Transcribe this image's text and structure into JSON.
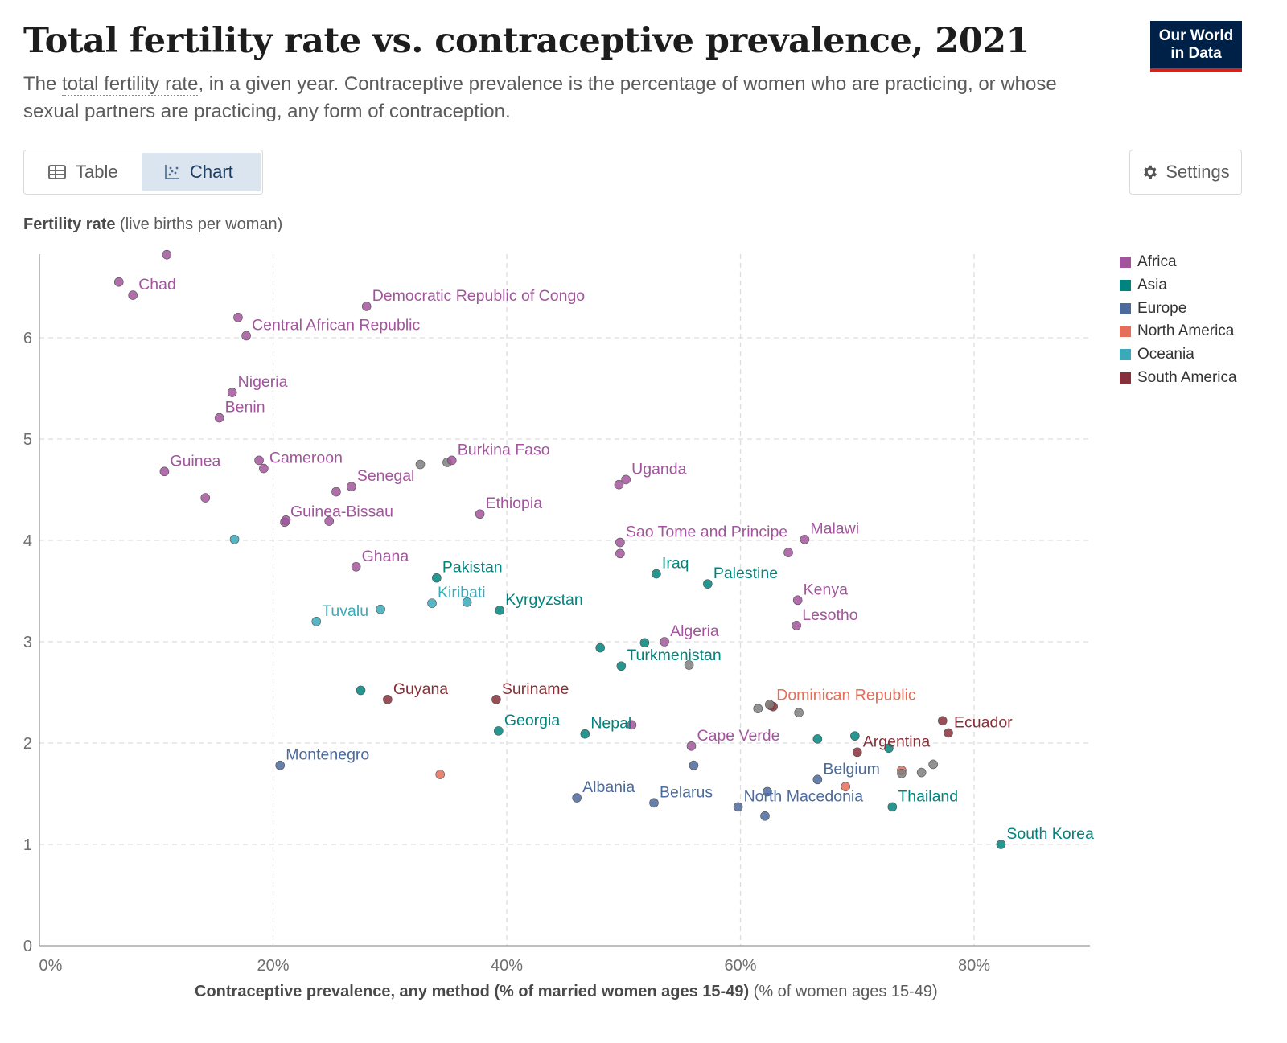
{
  "header": {
    "title": "Total fertility rate vs. contraceptive prevalence, 2021",
    "subtitle_pre": "The ",
    "subtitle_link": "total fertility rate",
    "subtitle_post": ", in a given year. Contraceptive prevalence is the percentage of women who are practicing, or whose sexual partners are practicing, any form of contraception.",
    "logo_line1": "Our World",
    "logo_line2": "in Data"
  },
  "tabs": {
    "table_label": "Table",
    "chart_label": "Chart",
    "active": "Chart",
    "table_icon": "table-icon",
    "chart_icon": "scatter-chart-icon"
  },
  "settings": {
    "label": "Settings",
    "icon": "gear-icon"
  },
  "axes": {
    "y_label_bold": "Fertility rate",
    "y_label_rest": " (live births per woman)",
    "x_label_bold": "Contraceptive prevalence, any method (% of married women ages 15-49)",
    "x_label_rest": " (% of women ages 15-49)"
  },
  "colors": {
    "Africa": "#a2559c",
    "Asia": "#00847e",
    "Europe": "#4c6a9c",
    "North America": "#e56e5a",
    "Oceania": "#38aaba",
    "South America": "#883039",
    "Other": "#7f7f7f"
  },
  "chart_data": {
    "type": "scatter",
    "xlim": [
      0,
      90
    ],
    "ylim": [
      0,
      6.8
    ],
    "x_ticks": [
      0,
      20,
      40,
      60,
      80
    ],
    "x_tick_labels": [
      "0%",
      "20%",
      "40%",
      "60%",
      "80%"
    ],
    "y_ticks": [
      0,
      1,
      2,
      3,
      4,
      5,
      6
    ],
    "y_tick_labels": [
      "0",
      "1",
      "2",
      "3",
      "4",
      "5",
      "6"
    ],
    "grid": true,
    "legend_position": "right",
    "legend": [
      "Africa",
      "Asia",
      "Europe",
      "North America",
      "Oceania",
      "South America"
    ],
    "points": [
      {
        "x": 10.9,
        "y": 6.82,
        "region": "Africa"
      },
      {
        "x": 6.8,
        "y": 6.55,
        "region": "Africa"
      },
      {
        "x": 8.0,
        "y": 6.42,
        "region": "Africa",
        "label": "Chad"
      },
      {
        "x": 28.0,
        "y": 6.31,
        "region": "Africa",
        "label": "Democratic Republic of Congo"
      },
      {
        "x": 17.0,
        "y": 6.2,
        "region": "Africa"
      },
      {
        "x": 17.7,
        "y": 6.02,
        "region": "Africa",
        "label": "Central African Republic"
      },
      {
        "x": 16.5,
        "y": 5.46,
        "region": "Africa",
        "label": "Nigeria"
      },
      {
        "x": 15.4,
        "y": 5.21,
        "region": "Africa",
        "label": "Benin"
      },
      {
        "x": 18.8,
        "y": 4.79,
        "region": "Africa"
      },
      {
        "x": 19.2,
        "y": 4.71,
        "region": "Africa",
        "label": "Cameroon"
      },
      {
        "x": 10.7,
        "y": 4.68,
        "region": "Africa",
        "label": "Guinea"
      },
      {
        "x": 32.6,
        "y": 4.75,
        "region": "Other"
      },
      {
        "x": 34.9,
        "y": 4.77,
        "region": "Other"
      },
      {
        "x": 35.3,
        "y": 4.79,
        "region": "Africa",
        "label": "Burkina Faso"
      },
      {
        "x": 26.7,
        "y": 4.53,
        "region": "Africa",
        "label": "Senegal"
      },
      {
        "x": 25.4,
        "y": 4.48,
        "region": "Africa"
      },
      {
        "x": 14.2,
        "y": 4.42,
        "region": "Africa"
      },
      {
        "x": 49.6,
        "y": 4.55,
        "region": "Africa"
      },
      {
        "x": 50.2,
        "y": 4.6,
        "region": "Africa",
        "label": "Uganda"
      },
      {
        "x": 37.7,
        "y": 4.26,
        "region": "Africa",
        "label": "Ethiopia"
      },
      {
        "x": 21.0,
        "y": 4.18,
        "region": "Africa",
        "label": "Guinea-Bissau"
      },
      {
        "x": 21.1,
        "y": 4.2,
        "region": "Africa"
      },
      {
        "x": 24.8,
        "y": 4.19,
        "region": "Africa"
      },
      {
        "x": 16.7,
        "y": 4.01,
        "region": "Oceania"
      },
      {
        "x": 49.7,
        "y": 3.98,
        "region": "Africa",
        "label": "Sao Tome and Principe"
      },
      {
        "x": 49.7,
        "y": 3.87,
        "region": "Africa"
      },
      {
        "x": 65.5,
        "y": 4.01,
        "region": "Africa",
        "label": "Malawi"
      },
      {
        "x": 64.1,
        "y": 3.88,
        "region": "Africa"
      },
      {
        "x": 27.1,
        "y": 3.74,
        "region": "Africa",
        "label": "Ghana"
      },
      {
        "x": 34.0,
        "y": 3.63,
        "region": "Asia",
        "label": "Pakistan"
      },
      {
        "x": 52.8,
        "y": 3.67,
        "region": "Asia",
        "label": "Iraq"
      },
      {
        "x": 57.2,
        "y": 3.57,
        "region": "Asia",
        "label": "Palestine"
      },
      {
        "x": 33.6,
        "y": 3.38,
        "region": "Oceania",
        "label": "Kiribati"
      },
      {
        "x": 36.6,
        "y": 3.39,
        "region": "Oceania"
      },
      {
        "x": 39.4,
        "y": 3.31,
        "region": "Asia",
        "label": "Kyrgyzstan"
      },
      {
        "x": 29.2,
        "y": 3.32,
        "region": "Oceania"
      },
      {
        "x": 23.7,
        "y": 3.2,
        "region": "Oceania",
        "label": "Tuvalu"
      },
      {
        "x": 64.9,
        "y": 3.41,
        "region": "Africa",
        "label": "Kenya"
      },
      {
        "x": 64.8,
        "y": 3.16,
        "region": "Africa",
        "label": "Lesotho"
      },
      {
        "x": 53.5,
        "y": 3.0,
        "region": "Africa",
        "label": "Algeria"
      },
      {
        "x": 51.8,
        "y": 2.99,
        "region": "Asia"
      },
      {
        "x": 48.0,
        "y": 2.94,
        "region": "Asia"
      },
      {
        "x": 49.8,
        "y": 2.76,
        "region": "Asia",
        "label": "Turkmenistan"
      },
      {
        "x": 55.6,
        "y": 2.77,
        "region": "Other"
      },
      {
        "x": 27.5,
        "y": 2.52,
        "region": "Asia"
      },
      {
        "x": 29.8,
        "y": 2.43,
        "region": "South America",
        "label": "Guyana"
      },
      {
        "x": 39.1,
        "y": 2.43,
        "region": "South America",
        "label": "Suriname"
      },
      {
        "x": 62.6,
        "y": 2.37,
        "region": "North America",
        "label": "Dominican Republic"
      },
      {
        "x": 62.8,
        "y": 2.36,
        "region": "South America"
      },
      {
        "x": 61.5,
        "y": 2.34,
        "region": "Other"
      },
      {
        "x": 62.5,
        "y": 2.38,
        "region": "Other"
      },
      {
        "x": 65.0,
        "y": 2.3,
        "region": "Other"
      },
      {
        "x": 39.3,
        "y": 2.12,
        "region": "Asia",
        "label": "Georgia"
      },
      {
        "x": 46.7,
        "y": 2.09,
        "region": "Asia",
        "label": "Nepal"
      },
      {
        "x": 50.7,
        "y": 2.18,
        "region": "Africa"
      },
      {
        "x": 55.8,
        "y": 1.97,
        "region": "Africa",
        "label": "Cape Verde"
      },
      {
        "x": 66.6,
        "y": 2.04,
        "region": "Asia"
      },
      {
        "x": 69.8,
        "y": 2.07,
        "region": "Asia"
      },
      {
        "x": 72.7,
        "y": 1.95,
        "region": "Asia"
      },
      {
        "x": 70.0,
        "y": 1.91,
        "region": "South America",
        "label": "Argentina"
      },
      {
        "x": 77.3,
        "y": 2.22,
        "region": "South America"
      },
      {
        "x": 77.8,
        "y": 2.1,
        "region": "South America",
        "label": "Ecuador"
      },
      {
        "x": 20.6,
        "y": 1.78,
        "region": "Europe",
        "label": "Montenegro"
      },
      {
        "x": 34.3,
        "y": 1.69,
        "region": "North America"
      },
      {
        "x": 56.0,
        "y": 1.78,
        "region": "Europe"
      },
      {
        "x": 66.6,
        "y": 1.64,
        "region": "Europe",
        "label": "Belgium"
      },
      {
        "x": 69.0,
        "y": 1.57,
        "region": "North America"
      },
      {
        "x": 73.8,
        "y": 1.73,
        "region": "North America"
      },
      {
        "x": 73.8,
        "y": 1.7,
        "region": "Other"
      },
      {
        "x": 75.5,
        "y": 1.71,
        "region": "Other"
      },
      {
        "x": 76.5,
        "y": 1.79,
        "region": "Other"
      },
      {
        "x": 46.0,
        "y": 1.46,
        "region": "Europe",
        "label": "Albania"
      },
      {
        "x": 52.6,
        "y": 1.41,
        "region": "Europe",
        "label": "Belarus"
      },
      {
        "x": 59.8,
        "y": 1.37,
        "region": "Europe",
        "label": "North Macedonia"
      },
      {
        "x": 62.3,
        "y": 1.52,
        "region": "Europe"
      },
      {
        "x": 62.1,
        "y": 1.28,
        "region": "Europe"
      },
      {
        "x": 73.0,
        "y": 1.37,
        "region": "Asia",
        "label": "Thailand"
      },
      {
        "x": 82.3,
        "y": 1.0,
        "region": "Asia",
        "label": "South Korea"
      }
    ]
  }
}
